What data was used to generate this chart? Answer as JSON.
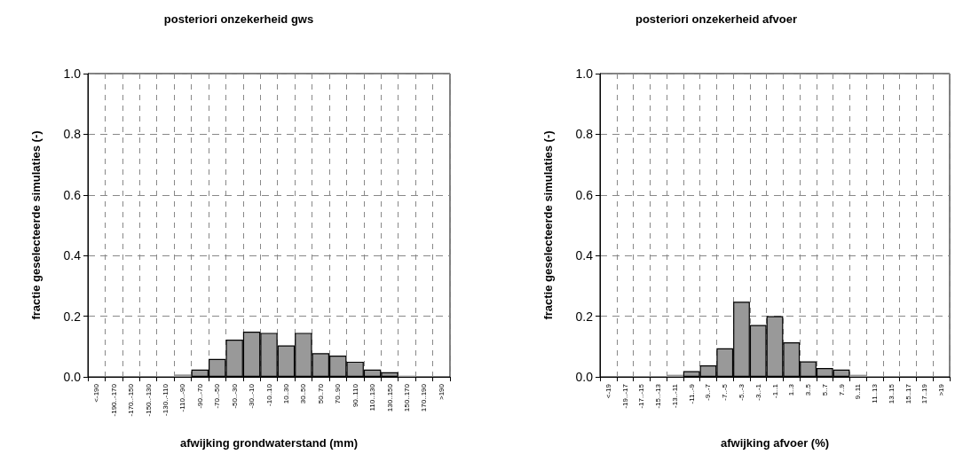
{
  "chart_data": [
    {
      "type": "bar",
      "title": "posteriori onzekerheid gws",
      "xlabel": "afwijking grondwaterstand (mm)",
      "ylabel": "fractie geselecteerde simulaties (-)",
      "categories": [
        "<-190",
        "-190..-170",
        "-170..-150",
        "-150..-130",
        "-130..-110",
        "-110..-90",
        "-90..-70",
        "-70..-50",
        "-50..-30",
        "-30..-10",
        "-10..10",
        "10..30",
        "30..50",
        "50..70",
        "70..90",
        "90..110",
        "110..130",
        "130..150",
        "150..170",
        "170..190",
        ">190"
      ],
      "values": [
        0,
        0,
        0,
        0,
        0.002,
        0.008,
        0.024,
        0.059,
        0.123,
        0.149,
        0.145,
        0.104,
        0.145,
        0.078,
        0.07,
        0.05,
        0.024,
        0.015,
        0.004,
        0,
        0
      ],
      "color": "#999999",
      "ylim": [
        0,
        1
      ],
      "yticks": [
        {
          "value": 0,
          "label": "0.0"
        },
        {
          "value": 0.2,
          "label": "0.2"
        },
        {
          "value": 0.4,
          "label": "0.4"
        },
        {
          "value": 0.6,
          "label": "0.6"
        },
        {
          "value": 0.8,
          "label": "0.8"
        },
        {
          "value": 1,
          "label": "1.0"
        }
      ],
      "grid": true
    },
    {
      "type": "bar",
      "title": "posteriori onzekerheid afvoer",
      "xlabel": "afwijking afvoer (%)",
      "ylabel": "fractie geselecteerde simulaties (-)",
      "categories": [
        "<-19",
        "-19..-17",
        "-17..-15",
        "-15..-13",
        "-13..-11",
        "-11..-9",
        "-9..-7",
        "-7..-5",
        "-5..-3",
        "-3..-1",
        "-1..1",
        "1..3",
        "3..5",
        "5..7",
        "7..9",
        "9..11",
        "11..13",
        "13..15",
        "15..17",
        "17..19",
        ">19"
      ],
      "values": [
        0,
        0,
        0.002,
        0.002,
        0.007,
        0.019,
        0.038,
        0.094,
        0.248,
        0.171,
        0.2,
        0.114,
        0.051,
        0.029,
        0.024,
        0.007,
        0.003,
        0.002,
        0,
        0,
        0
      ],
      "color": "#999999",
      "ylim": [
        0,
        1
      ],
      "yticks": [
        {
          "value": 0,
          "label": "0.0"
        },
        {
          "value": 0.2,
          "label": "0.2"
        },
        {
          "value": 0.4,
          "label": "0.4"
        },
        {
          "value": 0.6,
          "label": "0.6"
        },
        {
          "value": 0.8,
          "label": "0.8"
        },
        {
          "value": 1,
          "label": "1.0"
        }
      ],
      "grid": true
    }
  ]
}
